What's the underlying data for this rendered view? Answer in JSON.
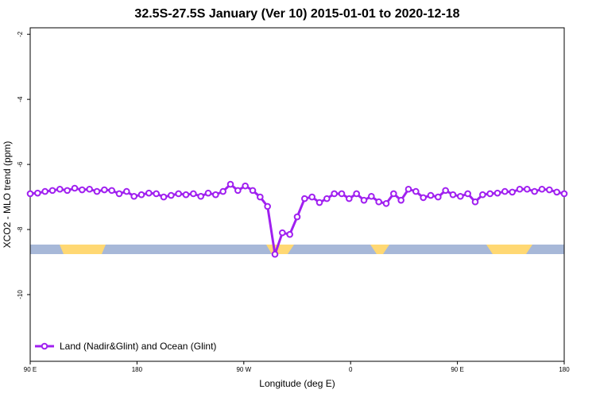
{
  "chart_data": {
    "type": "line",
    "title": "32.5S-27.5S January (Ver 10)   2015-01-01 to 2020-12-18",
    "x_label": "Longitude (deg E)",
    "y_label": "XCO2 - MLO trend (ppm)",
    "x": [
      90,
      96.25,
      102.5,
      108.75,
      115,
      121.25,
      127.5,
      133.75,
      140,
      146.25,
      152.5,
      158.75,
      165,
      171.25,
      177.5,
      183.75,
      190,
      196.25,
      202.5,
      208.75,
      215,
      221.25,
      227.5,
      233.75,
      240,
      246.25,
      252.5,
      258.75,
      265,
      271.25,
      277.5,
      283.75,
      290,
      296.25,
      302.5,
      308.75,
      315,
      321.25,
      327.5,
      333.75,
      340,
      346.25,
      352.5,
      358.75,
      365,
      371.25,
      377.5,
      383.75,
      390,
      396.25,
      402.5,
      408.75,
      415,
      421.25,
      427.5,
      433.75,
      440,
      446.25,
      452.5,
      458.75,
      465,
      471.25,
      477.5,
      483.75,
      490,
      496.25,
      502.5,
      508.75,
      515,
      521.25,
      527.5,
      533.75,
      540
    ],
    "series": [
      {
        "name": "Land (Nadir&Glint) and Ocean (Glint)",
        "color": "#a020f0",
        "values": [
          -6.9,
          -6.88,
          -6.83,
          -6.8,
          -6.76,
          -6.8,
          -6.73,
          -6.78,
          -6.76,
          -6.83,
          -6.78,
          -6.8,
          -6.9,
          -6.83,
          -6.98,
          -6.93,
          -6.88,
          -6.9,
          -7.0,
          -6.95,
          -6.9,
          -6.93,
          -6.9,
          -6.98,
          -6.88,
          -6.93,
          -6.83,
          -6.61,
          -6.8,
          -6.66,
          -6.8,
          -7.0,
          -7.29,
          -8.76,
          -8.1,
          -8.15,
          -7.61,
          -7.05,
          -7.0,
          -7.17,
          -7.05,
          -6.9,
          -6.9,
          -7.05,
          -6.9,
          -7.1,
          -6.98,
          -7.15,
          -7.2,
          -6.9,
          -7.1,
          -6.76,
          -6.83,
          -7.02,
          -6.95,
          -7.0,
          -6.8,
          -6.93,
          -6.98,
          -6.9,
          -7.15,
          -6.93,
          -6.9,
          -6.88,
          -6.83,
          -6.85,
          -6.76,
          -6.76,
          -6.83,
          -6.76,
          -6.78,
          -6.85,
          -6.9
        ]
      }
    ],
    "xlim": [
      90,
      540
    ],
    "xticks": [
      {
        "value": 90,
        "label": "90 E"
      },
      {
        "value": 180,
        "label": "180"
      },
      {
        "value": 270,
        "label": "90 W"
      },
      {
        "value": 360,
        "label": "0"
      },
      {
        "value": 450,
        "label": "90 E"
      },
      {
        "value": 540,
        "label": "180"
      }
    ],
    "ylim": [
      -12.05,
      -1.8
    ],
    "yticks": [
      -2,
      -4,
      -6,
      -8,
      -10
    ],
    "legend": "lower left"
  }
}
